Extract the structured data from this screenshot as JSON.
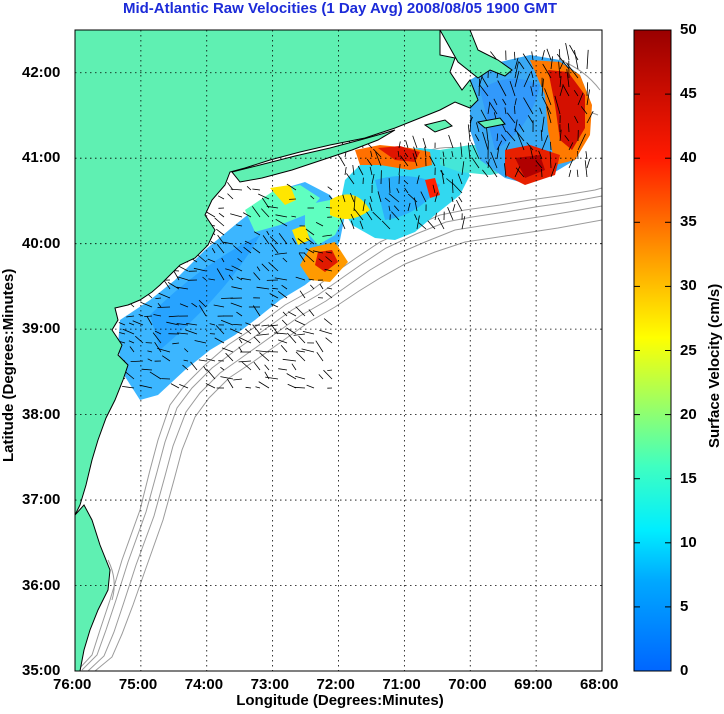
{
  "title": "Mid-Atlantic Raw Velocities (1 Day Avg) 2008/08/05 1900 GMT",
  "map": {
    "x_axis": {
      "label": "Longitude (Degrees:Minutes)",
      "range": [
        -76,
        -68
      ],
      "ticks": [
        "76:00",
        "75:00",
        "74:00",
        "73:00",
        "72:00",
        "71:00",
        "70:00",
        "69:00",
        "68:00"
      ]
    },
    "y_axis": {
      "label": "Latitude (Degrees:Minutes)",
      "range": [
        35,
        42.5
      ],
      "ticks": [
        "35:00",
        "36:00",
        "37:00",
        "38:00",
        "39:00",
        "40:00",
        "41:00",
        "42:00"
      ]
    },
    "grid": "dotted",
    "land_color": "#5ff0b2",
    "bathymetry_color": "#9b9b9b"
  },
  "colorbar": {
    "label": "Surface Velocity (cm/s)",
    "range": [
      0,
      50
    ],
    "ticks": [
      "0",
      "5",
      "10",
      "15",
      "20",
      "25",
      "30",
      "35",
      "40",
      "45",
      "50"
    ],
    "colormap": [
      "#0070ff",
      "#00d8ff",
      "#40ffc0",
      "#a0ff60",
      "#ffff00",
      "#ff9900",
      "#ff1a00",
      "#a00000"
    ]
  }
}
